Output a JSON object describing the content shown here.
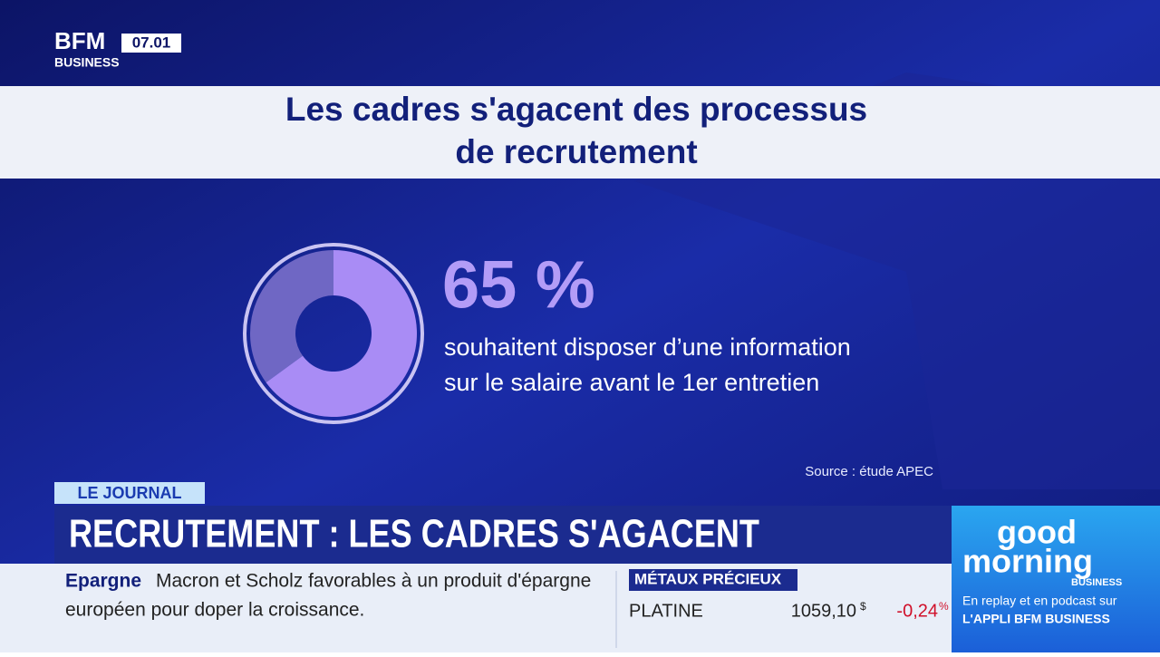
{
  "logo": {
    "brand": "BFM",
    "sub": "BUSINESS",
    "time": "07.01"
  },
  "headline": {
    "lines": [
      "Les cadres s'agacent des processus",
      "de recrutement"
    ]
  },
  "stat": {
    "value": 65,
    "value_label": "65 %",
    "lines": [
      "souhaitent disposer d’une information",
      "sur le salaire avant le 1er entretien"
    ],
    "source": "Source : étude APEC"
  },
  "lower_third": {
    "tag": "LE JOURNAL",
    "title": "RECRUTEMENT : LES CADRES S'AGACENT"
  },
  "ticker": {
    "topic": "Epargne",
    "lines": [
      "Macron et Scholz favorables à un produit d'épargne",
      "européen pour doper la croissance."
    ]
  },
  "market": {
    "header": "MÉTAUX PRÉCIEUX",
    "name": "PLATINE",
    "price": "1059,10",
    "currency": "$",
    "change": "-0,24",
    "change_unit": "%"
  },
  "promo": {
    "word1": "good",
    "word2": "morning",
    "word3": "BUSINESS",
    "line1": "En replay et en podcast sur",
    "line2": "L'APPLI BFM BUSINESS"
  }
}
